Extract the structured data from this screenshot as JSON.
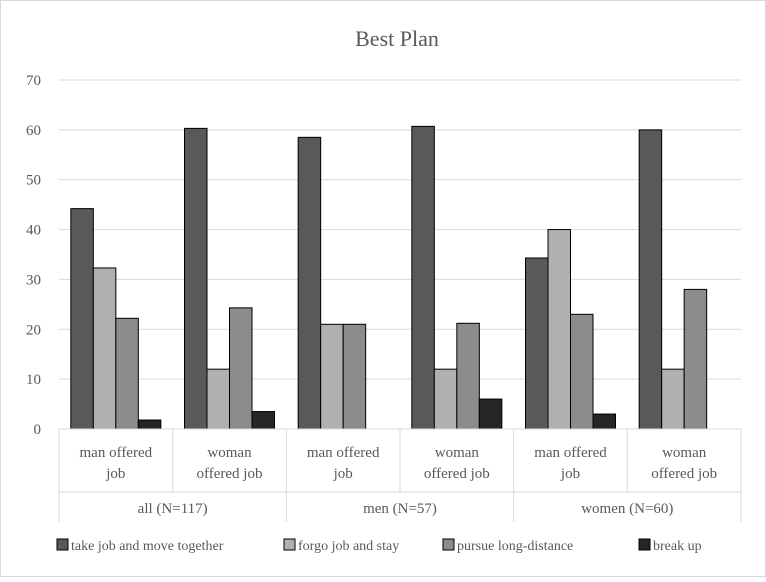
{
  "chart_data": {
    "type": "bar",
    "title": "Best Plan",
    "xlabel": "",
    "ylabel": "",
    "ylim": [
      0,
      70
    ],
    "yticks": [
      0,
      10,
      20,
      30,
      40,
      50,
      60,
      70
    ],
    "grid": true,
    "legend_position": "bottom",
    "groups": [
      {
        "label": "all (N=117)",
        "categories": [
          "man offered job",
          "woman offered job"
        ]
      },
      {
        "label": "men (N=57)",
        "categories": [
          "man offered job",
          "woman offered job"
        ]
      },
      {
        "label": "women (N=60)",
        "categories": [
          "man offered job",
          "woman offered job"
        ]
      }
    ],
    "categories": [
      [
        "man offered",
        "job"
      ],
      [
        "woman",
        "offered job"
      ],
      [
        "man offered",
        "job"
      ],
      [
        "woman",
        "offered job"
      ],
      [
        "man offered",
        "job"
      ],
      [
        "woman",
        "offered job"
      ]
    ],
    "series": [
      {
        "name": "take job and move together",
        "color": "#595959",
        "values": [
          44.2,
          60.3,
          58.5,
          60.7,
          34.3,
          60.0
        ]
      },
      {
        "name": "forgo job and stay",
        "color": "#b0b0b0",
        "values": [
          32.3,
          12.0,
          21.0,
          12.0,
          40.0,
          12.0
        ]
      },
      {
        "name": "pursue long-distance",
        "color": "#8c8c8c",
        "values": [
          22.2,
          24.3,
          21.0,
          21.2,
          23.0,
          28.0
        ]
      },
      {
        "name": "break up",
        "color": "#262626",
        "values": [
          1.8,
          3.5,
          0,
          6.0,
          3.0,
          0
        ]
      }
    ]
  }
}
